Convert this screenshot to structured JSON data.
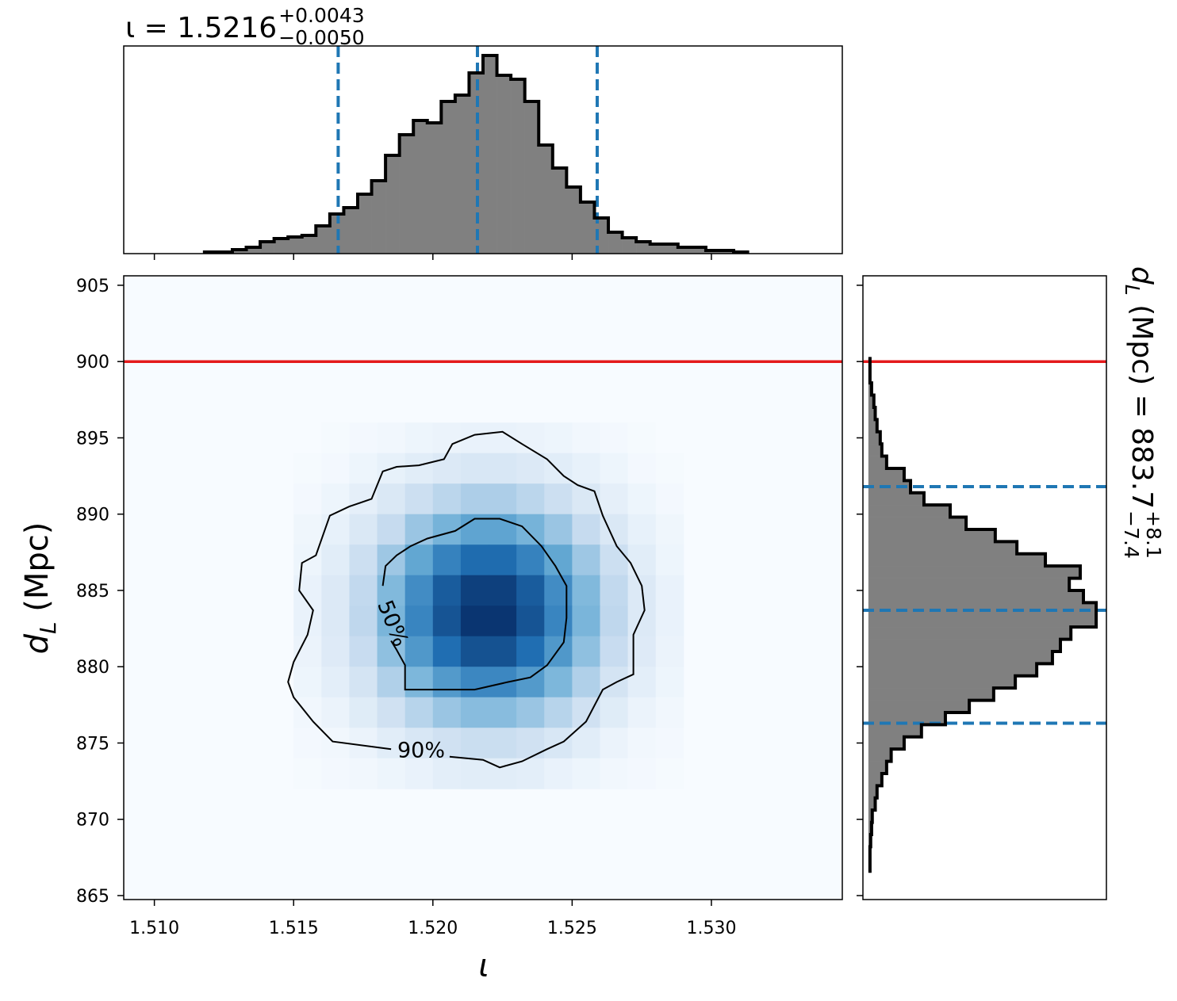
{
  "chart_data": [
    {
      "type": "histogram",
      "orientation": "vertical",
      "title": {
        "main": "ι = 1.5216",
        "sup": "+0.0043",
        "sub": "−0.0050"
      },
      "bins": [
        1.5118,
        1.5123,
        1.5128,
        1.5133,
        1.5138,
        1.5143,
        1.5148,
        1.5153,
        1.5158,
        1.5163,
        1.5168,
        1.5173,
        1.5178,
        1.5183,
        1.5188,
        1.5193,
        1.5198,
        1.5203,
        1.5208,
        1.5213,
        1.5218,
        1.5223,
        1.5228,
        1.5233,
        1.5238,
        1.5243,
        1.5248,
        1.5253,
        1.5258,
        1.5263,
        1.5268,
        1.5273,
        1.5278,
        1.5283,
        1.5288,
        1.5293,
        1.5298,
        1.5303,
        1.5308,
        1.5313
      ],
      "values": [
        0.008,
        0.008,
        0.02,
        0.032,
        0.06,
        0.076,
        0.084,
        0.092,
        0.14,
        0.2,
        0.232,
        0.3,
        0.368,
        0.496,
        0.6,
        0.672,
        0.66,
        0.768,
        0.8,
        0.912,
        1.0,
        0.9,
        0.88,
        0.768,
        0.548,
        0.432,
        0.336,
        0.26,
        0.18,
        0.108,
        0.08,
        0.06,
        0.048,
        0.048,
        0.032,
        0.032,
        0.016,
        0.016,
        0.008
      ],
      "color": "#808080",
      "edge_color": "#000000",
      "quantiles": [
        1.5166,
        1.5216,
        1.5259
      ],
      "quantile_color": "#1f77b4",
      "xlim": [
        1.5089,
        1.5347
      ],
      "ylim": [
        0,
        1.048
      ]
    },
    {
      "type": "density",
      "xlabel": "ι",
      "ylabel": {
        "main": "d",
        "sub": "L",
        "rest": " (Mpc)"
      },
      "xlim": [
        1.5089,
        1.5347
      ],
      "ylim": [
        864.74,
        905.62
      ],
      "xticks": [
        {
          "value": 1.51,
          "label": "1.510"
        },
        1.515,
        {
          "value": 1.52,
          "label": "1.520"
        },
        1.525,
        {
          "value": 1.53,
          "label": "1.530"
        }
      ],
      "yticks": [
        865,
        870,
        875,
        880,
        885,
        890,
        895,
        900,
        905
      ],
      "truth": 900,
      "truth_color": "#e41a1c",
      "colormap": [
        "#f7fbff",
        "#c6dbef",
        "#6baed6",
        "#2171b5",
        "#08306b"
      ],
      "vlim": [
        0,
        1
      ],
      "density": {
        "x": [
          1.515,
          1.516,
          1.517,
          1.518,
          1.519,
          1.52,
          1.521,
          1.522,
          1.523,
          1.524,
          1.525,
          1.526,
          1.527,
          1.528,
          1.529
        ],
        "y": [
          896,
          894,
          892,
          890,
          888,
          886,
          884,
          882,
          880,
          878,
          876,
          874,
          872
        ],
        "values": [
          [
            0,
            0.01,
            0.02,
            0.03,
            0.05,
            0.06,
            0.07,
            0.07,
            0.06,
            0.05,
            0.03,
            0.02,
            0.01,
            0
          ],
          [
            0.01,
            0.02,
            0.05,
            0.08,
            0.11,
            0.14,
            0.16,
            0.16,
            0.14,
            0.11,
            0.08,
            0.05,
            0.02,
            0.01
          ],
          [
            0.02,
            0.05,
            0.09,
            0.15,
            0.22,
            0.28,
            0.32,
            0.32,
            0.28,
            0.22,
            0.15,
            0.09,
            0.05,
            0.02
          ],
          [
            0.04,
            0.08,
            0.15,
            0.25,
            0.37,
            0.47,
            0.54,
            0.54,
            0.47,
            0.37,
            0.25,
            0.15,
            0.08,
            0.04
          ],
          [
            0.05,
            0.11,
            0.22,
            0.36,
            0.53,
            0.68,
            0.77,
            0.77,
            0.68,
            0.53,
            0.36,
            0.22,
            0.11,
            0.05
          ],
          [
            0.07,
            0.14,
            0.26,
            0.44,
            0.64,
            0.83,
            0.94,
            0.94,
            0.83,
            0.64,
            0.44,
            0.26,
            0.14,
            0.07
          ],
          [
            0.07,
            0.14,
            0.27,
            0.46,
            0.67,
            0.86,
            0.98,
            0.98,
            0.86,
            0.67,
            0.46,
            0.27,
            0.14,
            0.07
          ],
          [
            0.06,
            0.13,
            0.24,
            0.4,
            0.59,
            0.76,
            0.87,
            0.87,
            0.76,
            0.59,
            0.4,
            0.24,
            0.13,
            0.06
          ],
          [
            0.05,
            0.1,
            0.18,
            0.31,
            0.45,
            0.58,
            0.66,
            0.66,
            0.58,
            0.45,
            0.31,
            0.18,
            0.1,
            0.05
          ],
          [
            0.03,
            0.06,
            0.12,
            0.2,
            0.29,
            0.37,
            0.42,
            0.42,
            0.37,
            0.29,
            0.2,
            0.12,
            0.06,
            0.03
          ],
          [
            0.02,
            0.03,
            0.06,
            0.11,
            0.16,
            0.2,
            0.23,
            0.23,
            0.2,
            0.16,
            0.11,
            0.06,
            0.03,
            0.02
          ],
          [
            0.01,
            0.02,
            0.03,
            0.05,
            0.07,
            0.1,
            0.11,
            0.11,
            0.1,
            0.07,
            0.05,
            0.03,
            0.02,
            0.01
          ]
        ]
      },
      "contours": [
        {
          "label": "90%",
          "x": [
            1.5185,
            1.5164,
            1.5157,
            1.515,
            1.5148,
            1.515,
            1.5155,
            1.5157,
            1.5152,
            1.5153,
            1.5158,
            1.5163,
            1.517,
            1.5178,
            1.5182,
            1.5187,
            1.5195,
            1.5204,
            1.5207,
            1.5215,
            1.5225,
            1.5232,
            1.5241,
            1.5247,
            1.5252,
            1.5258,
            1.5261,
            1.5266,
            1.5271,
            1.5275,
            1.5276,
            1.5272,
            1.5272,
            1.5266,
            1.5261,
            1.5255,
            1.5247,
            1.5241,
            1.5232,
            1.5224,
            1.5218,
            1.5206
          ],
          "y": [
            874.6,
            875.1,
            876.4,
            878.0,
            879.0,
            880.3,
            882.1,
            883.7,
            885.0,
            886.8,
            887.3,
            889.9,
            890.5,
            891.0,
            892.8,
            893.1,
            893.2,
            893.6,
            894.6,
            895.2,
            895.4,
            894.6,
            893.6,
            892.5,
            891.9,
            891.5,
            889.9,
            887.9,
            886.8,
            885.3,
            883.7,
            882.1,
            879.5,
            879.0,
            878.5,
            876.4,
            875.1,
            874.6,
            873.8,
            873.4,
            873.9,
            874.1
          ]
        },
        {
          "label": "50%",
          "x": [
            1.5182,
            1.5183,
            1.5187,
            1.5192,
            1.5198,
            1.5208,
            1.5215,
            1.5224,
            1.5232,
            1.5239,
            1.5244,
            1.5248,
            1.5248,
            1.5247,
            1.5241,
            1.5235,
            1.5227,
            1.5215,
            1.5207,
            1.5198,
            1.5191,
            1.519,
            1.519,
            1.5187,
            1.5185
          ],
          "y": [
            885.3,
            886.6,
            887.3,
            887.9,
            888.4,
            888.9,
            889.7,
            889.7,
            889.2,
            887.9,
            886.6,
            885.3,
            883.2,
            881.6,
            880.1,
            879.3,
            879.0,
            878.5,
            878.5,
            878.5,
            878.5,
            878.5,
            880.1,
            881.1,
            881.7
          ]
        }
      ]
    },
    {
      "type": "histogram",
      "orientation": "horizontal",
      "title": {
        "main": "d",
        "sub": "L",
        "rest": " (Mpc) = 883.7",
        "sup": "+8.1",
        "sub2": "−7.4"
      },
      "bins": [
        866.6,
        867.4,
        868.2,
        869,
        869.8,
        870.6,
        871.4,
        872.2,
        873,
        873.8,
        874.6,
        875.4,
        876.2,
        877,
        877.8,
        878.6,
        879.4,
        880.2,
        881,
        881.8,
        882.6,
        883.4,
        884.2,
        885,
        885.8,
        886.6,
        887.4,
        888.2,
        889,
        889.8,
        890.6,
        891.4,
        892.2,
        893,
        893.8,
        894.6,
        895.4,
        896.2,
        897,
        897.8,
        898.6,
        899.4,
        900.2
      ],
      "values": [
        0.007,
        0.007,
        0.01,
        0.014,
        0.017,
        0.03,
        0.038,
        0.059,
        0.08,
        0.1,
        0.157,
        0.233,
        0.338,
        0.443,
        0.55,
        0.645,
        0.739,
        0.808,
        0.843,
        0.889,
        1.0,
        1.0,
        0.944,
        0.882,
        0.93,
        0.777,
        0.652,
        0.557,
        0.429,
        0.359,
        0.244,
        0.185,
        0.157,
        0.08,
        0.059,
        0.052,
        0.038,
        0.03,
        0.024,
        0.014,
        0.007,
        0.007
      ],
      "color": "#808080",
      "edge_color": "#000000",
      "quantiles": [
        876.3,
        883.7,
        891.8
      ],
      "quantile_color": "#1f77b4",
      "truth": 900,
      "truth_color": "#e41a1c",
      "xlim": [
        -0.024,
        1.045
      ],
      "ylim": [
        864.74,
        905.62
      ]
    }
  ]
}
